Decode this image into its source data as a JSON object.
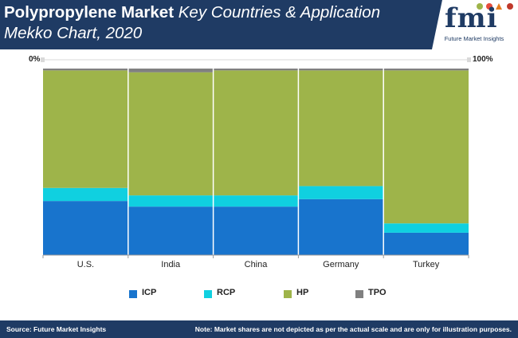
{
  "header": {
    "title_bold": "Polypropylene Market",
    "title_italic_line1": "Key Countries & Application",
    "title_italic_line2": "Mekko Chart, 2020"
  },
  "logo": {
    "text": "fmi",
    "subtitle": "Future Market Insights"
  },
  "scale": {
    "left": "0%",
    "right": "100%"
  },
  "footer": {
    "source": "Source: Future Market Insights",
    "note": "Note: Market shares are not depicted as per the actual scale and are only for illustration purposes."
  },
  "colors": {
    "header_bg": "#1f3b64",
    "ICP": "#1874cd",
    "RCP": "#10d0e0",
    "HP": "#9eb44a",
    "TPO": "#808080"
  },
  "chart_data": {
    "type": "mekko",
    "categories": [
      "U.S.",
      "India",
      "China",
      "Germany",
      "Turkey"
    ],
    "widths": [
      20,
      20,
      20,
      20,
      20
    ],
    "series": [
      {
        "name": "ICP",
        "values": [
          29,
          26,
          26,
          30,
          12
        ]
      },
      {
        "name": "RCP",
        "values": [
          7,
          6,
          6,
          7,
          5
        ]
      },
      {
        "name": "HP",
        "values": [
          63,
          66,
          67,
          62,
          82
        ]
      },
      {
        "name": "TPO",
        "values": [
          1,
          2,
          1,
          1,
          1
        ]
      }
    ],
    "ylim": [
      0,
      100
    ],
    "legend_position": "bottom"
  }
}
